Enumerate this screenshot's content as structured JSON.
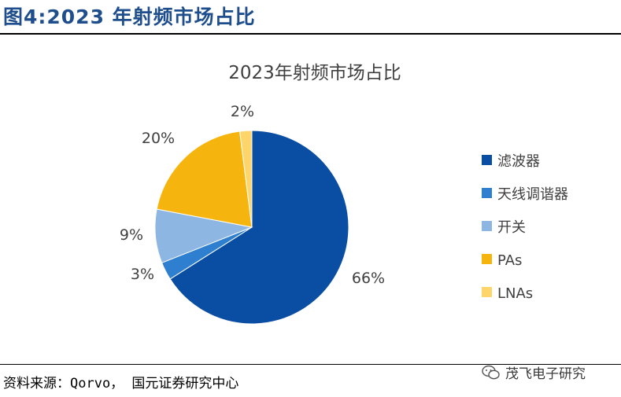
{
  "header": {
    "figure_title": "图4:2023 年射频市场占比"
  },
  "chart_data": {
    "type": "pie",
    "title": "2023年射频市场占比",
    "categories": [
      "滤波器",
      "天线调谐器",
      "开关",
      "PAs",
      "LNAs"
    ],
    "values": [
      66,
      3,
      9,
      20,
      2
    ],
    "labels": [
      "66%",
      "3%",
      "9%",
      "20%",
      "2%"
    ],
    "colors": [
      "#0a4ea3",
      "#2e7fd0",
      "#8db6e2",
      "#f6b40e",
      "#fdd56a"
    ],
    "legend_position": "right"
  },
  "footer": {
    "source": "资料来源：Qorvo， 国元证券研究中心",
    "watermark": "茂飞电子研究"
  }
}
